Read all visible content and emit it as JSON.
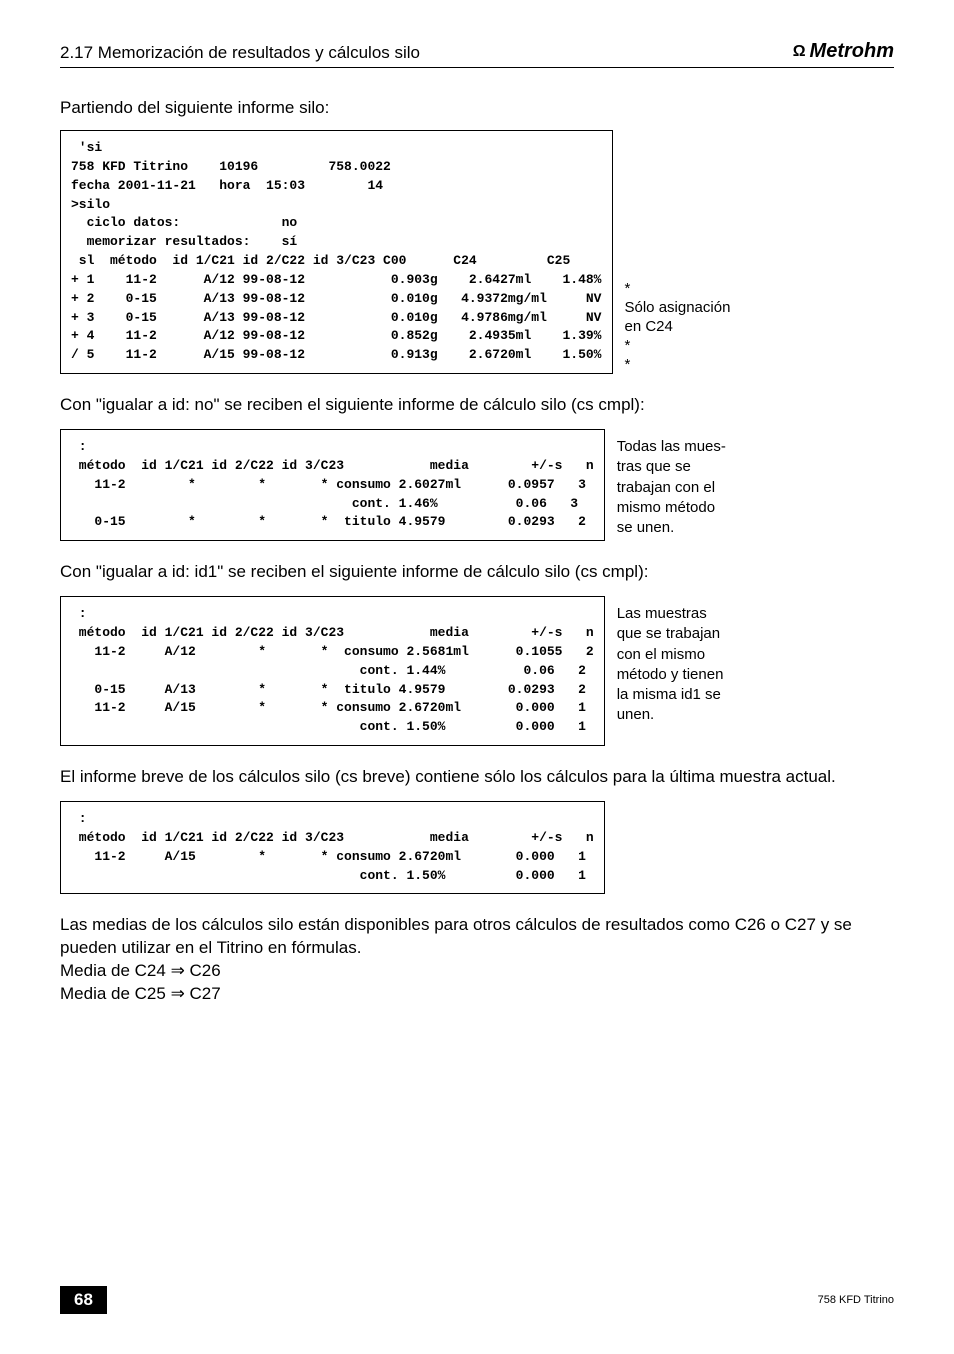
{
  "header": {
    "title": "2.17 Memorización de resultados y cálculos silo",
    "brand": "Metrohm"
  },
  "intro1": "Partiendo del siguiente informe silo:",
  "block1": {
    "lines": [
      " 'si",
      "758 KFD Titrino    10196         758.0022",
      "fecha 2001-11-21   hora  15:03        14",
      ">silo",
      "  ciclo datos:             no",
      "  memorizar resultados:    sí",
      " sl  método  id 1/C21 id 2/C22 id 3/C23 C00      C24         C25",
      "+ 1    11-2      A/12 99-08-12           0.903g    2.6427ml    1.48%",
      "+ 2    0-15      A/13 99-08-12           0.010g   4.9372mg/ml     NV",
      "+ 3    0-15      A/13 99-08-12           0.010g   4.9786mg/ml     NV",
      "+ 4    11-2      A/12 99-08-12           0.852g    2.4935ml    1.39%",
      "/ 5    11-2      A/15 99-08-12           0.913g    2.6720ml    1.50%"
    ],
    "sideNotes": [
      "",
      "*",
      "Sólo asignación",
      "en C24",
      "*",
      "*"
    ]
  },
  "intro2": "Con \"igualar a id: no\" se reciben el siguiente informe de cálculo silo (cs cmpl):",
  "block2": {
    "lines": [
      " :",
      " método  id 1/C21 id 2/C22 id 3/C23           media        +/-s   n",
      "   11-2        *        *       * consumo 2.6027ml      0.0957   3",
      "                                    cont. 1.46%          0.06   3",
      "   0-15        *        *       *  titulo 4.9579        0.0293   2"
    ],
    "sideText": "Todas las mues-\ntras que se\ntrabajan con el\nmismo método\nse unen."
  },
  "intro3": "Con \"igualar a id: id1\" se reciben el siguiente informe de cálculo silo (cs cmpl):",
  "block3": {
    "lines": [
      " :",
      " método  id 1/C21 id 2/C22 id 3/C23           media        +/-s   n",
      "   11-2     A/12        *       *  consumo 2.5681ml      0.1055   2",
      "                                     cont. 1.44%          0.06   2",
      "   0-15     A/13        *       *  titulo 4.9579        0.0293   2",
      "   11-2     A/15        *       * consumo 2.6720ml       0.000   1",
      "                                     cont. 1.50%         0.000   1"
    ],
    "sideText": "Las muestras\nque se trabajan\ncon el mismo\nmétodo y tienen\nla misma id1 se\nunen."
  },
  "intro4": "El informe breve de los cálculos silo (cs breve) contiene sólo los cálculos para la última muestra actual.",
  "block4": {
    "lines": [
      " :",
      " método  id 1/C21 id 2/C22 id 3/C23           media        +/-s   n",
      "   11-2     A/15        *       * consumo 2.6720ml       0.000   1",
      "                                     cont. 1.50%         0.000   1"
    ]
  },
  "bottom": {
    "p1": "Las medias de los cálculos silo están disponibles para otros cálculos de resultados como C26 o C27 y se pueden utilizar en el Titrino en fórmulas.",
    "p2": "Media de C24 ⇒ C26",
    "p3": "Media de C25 ⇒ C27"
  },
  "footer": {
    "page": "68",
    "right": "758 KFD Titrino"
  }
}
